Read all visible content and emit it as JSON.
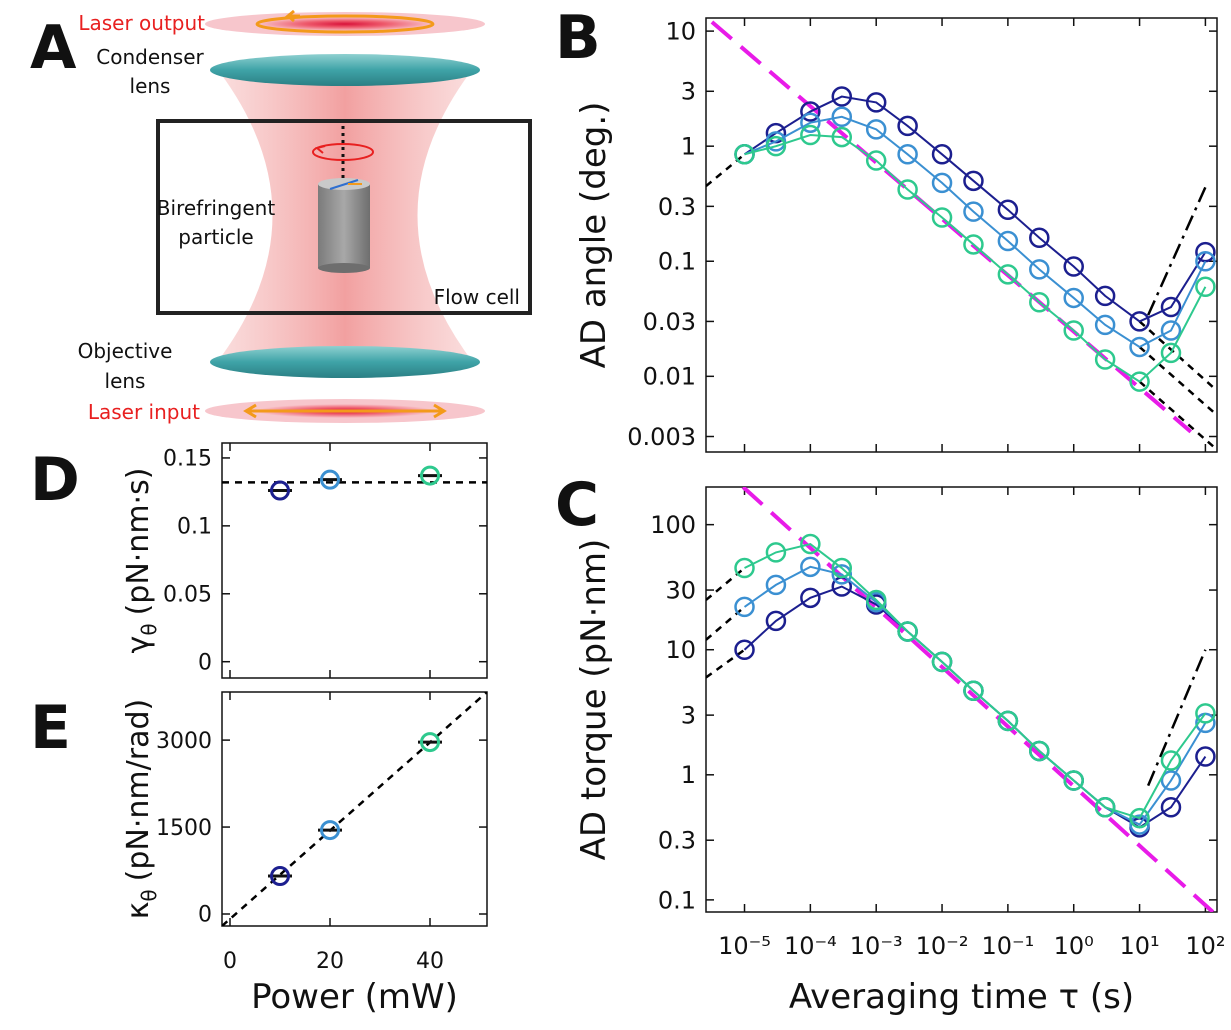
{
  "diagram": {
    "panel_label": "A",
    "laser_output": "Laser output",
    "condenser": [
      "Condenser",
      "lens"
    ],
    "particle": [
      "Birefringent",
      "particle"
    ],
    "flow_cell": "Flow cell",
    "objective": [
      "Objective",
      "lens"
    ],
    "laser_input": "Laser input"
  },
  "chart_data": [
    {
      "type": "line",
      "panel_label": "B",
      "ylabel": "AD angle (deg.)",
      "xscale": "log",
      "yscale": "log",
      "xlim": [
        2.6e-06,
        150
      ],
      "ylim": [
        0.0022,
        13
      ],
      "xticks": [
        {
          "value": 1e-05,
          "label": "10⁻⁵"
        },
        {
          "value": 0.0001,
          "label": "10⁻⁴"
        },
        {
          "value": 0.001,
          "label": "10⁻³"
        },
        {
          "value": 0.01,
          "label": "10⁻²"
        },
        {
          "value": 0.1,
          "label": "10⁻¹"
        },
        {
          "value": 1,
          "label": "10⁰"
        },
        {
          "value": 10,
          "label": "10¹"
        },
        {
          "value": 100,
          "label": "10²"
        }
      ],
      "xticklabels": false,
      "yticks": [
        0.003,
        0.01,
        0.03,
        0.1,
        0.3,
        1,
        3,
        10
      ],
      "x": [
        1e-05,
        3e-05,
        0.0001,
        0.0003,
        0.001,
        0.003,
        0.01,
        0.03,
        0.1,
        0.3,
        1,
        3,
        10,
        30,
        100
      ],
      "series": [
        {
          "color": "#1c1f8f",
          "values": [
            0.85,
            1.3,
            2.0,
            2.7,
            2.4,
            1.5,
            0.85,
            0.5,
            0.28,
            0.16,
            0.09,
            0.05,
            0.03,
            0.04,
            0.12
          ]
        },
        {
          "color": "#3b90d2",
          "values": [
            0.85,
            1.1,
            1.6,
            1.8,
            1.4,
            0.85,
            0.48,
            0.27,
            0.15,
            0.085,
            0.048,
            0.028,
            0.018,
            0.025,
            0.1
          ]
        },
        {
          "color": "#2ec98e",
          "values": [
            0.85,
            1.0,
            1.25,
            1.2,
            0.75,
            0.42,
            0.24,
            0.14,
            0.077,
            0.044,
            0.025,
            0.014,
            0.009,
            0.016,
            0.06
          ]
        }
      ],
      "lines": [
        {
          "color": "#000000",
          "dash": "dashed",
          "x": [
            2.6e-06,
            1e-05
          ],
          "values": [
            0.45,
            0.85
          ]
        },
        {
          "color": "#000000",
          "dash": "dashed",
          "x": [
            10,
            150
          ],
          "values": [
            0.03,
            0.0075
          ]
        },
        {
          "color": "#000000",
          "dash": "dashed",
          "x": [
            10,
            150
          ],
          "values": [
            0.018,
            0.0046
          ]
        },
        {
          "color": "#000000",
          "dash": "dashed",
          "x": [
            10,
            150
          ],
          "values": [
            0.009,
            0.0023
          ]
        },
        {
          "color": "#e81be8",
          "dash": "long",
          "x": [
            3.2e-06,
            60
          ],
          "values": [
            12,
            0.0033
          ]
        },
        {
          "color": "#000000",
          "dash": "dashdot",
          "x": [
            13.5,
            100
          ],
          "values": [
            0.034,
            0.44
          ]
        }
      ]
    },
    {
      "type": "line",
      "panel_label": "C",
      "ylabel": "AD torque (pN·nm)",
      "xlabel": "Averaging time τ (s)",
      "xscale": "log",
      "yscale": "log",
      "xlim": [
        2.6e-06,
        150
      ],
      "ylim": [
        0.08,
        200
      ],
      "xticks": [
        {
          "value": 1e-05,
          "label": "10⁻⁵"
        },
        {
          "value": 0.0001,
          "label": "10⁻⁴"
        },
        {
          "value": 0.001,
          "label": "10⁻³"
        },
        {
          "value": 0.01,
          "label": "10⁻²"
        },
        {
          "value": 0.1,
          "label": "10⁻¹"
        },
        {
          "value": 1,
          "label": "10⁰"
        },
        {
          "value": 10,
          "label": "10¹"
        },
        {
          "value": 100,
          "label": "10²"
        }
      ],
      "xticklabels": true,
      "yticks": [
        0.1,
        0.3,
        1,
        3,
        10,
        30,
        100
      ],
      "x": [
        1e-05,
        3e-05,
        0.0001,
        0.0003,
        0.001,
        0.003,
        0.01,
        0.03,
        0.1,
        0.3,
        1,
        3,
        10,
        30,
        100
      ],
      "series": [
        {
          "color": "#1c1f8f",
          "values": [
            10,
            17,
            26,
            32,
            23,
            14,
            8,
            4.7,
            2.7,
            1.55,
            0.9,
            0.55,
            0.38,
            0.55,
            1.4
          ]
        },
        {
          "color": "#3b90d2",
          "values": [
            22,
            33,
            46,
            40,
            24,
            14,
            8,
            4.7,
            2.7,
            1.55,
            0.9,
            0.55,
            0.4,
            0.9,
            2.6
          ]
        },
        {
          "color": "#2ec98e",
          "values": [
            45,
            60,
            70,
            45,
            25,
            14,
            8,
            4.7,
            2.7,
            1.55,
            0.9,
            0.55,
            0.45,
            1.3,
            3.1
          ]
        }
      ],
      "lines": [
        {
          "color": "#000000",
          "dash": "dashed",
          "x": [
            2.6e-06,
            1e-05
          ],
          "values": [
            6,
            10
          ]
        },
        {
          "color": "#000000",
          "dash": "dashed",
          "x": [
            2.6e-06,
            1e-05
          ],
          "values": [
            12,
            22
          ]
        },
        {
          "color": "#000000",
          "dash": "dashed",
          "x": [
            2.6e-06,
            1e-05
          ],
          "values": [
            25,
            45
          ]
        },
        {
          "color": "#e81be8",
          "dash": "long",
          "x": [
            9.5e-06,
            130
          ],
          "values": [
            200,
            0.08
          ]
        },
        {
          "color": "#000000",
          "dash": "dashdot",
          "x": [
            13.5,
            100
          ],
          "values": [
            0.82,
            10
          ]
        }
      ]
    },
    {
      "type": "scatter",
      "panel_label": "D",
      "ylabel": {
        "symbol": "γ",
        "subscript": "θ",
        "unit": "(pN·nm·s)"
      },
      "xlim": [
        -1.6,
        51.4
      ],
      "ylim": [
        -0.012,
        0.161
      ],
      "xticks": [
        0,
        20,
        40
      ],
      "xticklabels": false,
      "yticks": [
        0,
        0.05,
        0.1,
        0.15
      ],
      "x": [
        10,
        20,
        40
      ],
      "values": [
        0.126,
        0.134,
        0.137
      ],
      "colors": [
        "#1c1f8f",
        "#3b90d2",
        "#2ec98e"
      ],
      "lines": [
        {
          "color": "#000000",
          "dash": "dashed",
          "x": [
            -1.6,
            51.4
          ],
          "values": [
            0.132,
            0.132
          ]
        }
      ]
    },
    {
      "type": "scatter",
      "panel_label": "E",
      "ylabel": {
        "symbol": "κ",
        "subscript": "θ",
        "unit": "(pN·nm/rad)"
      },
      "xlabel": "Power (mW)",
      "xlim": [
        -1.6,
        51.4
      ],
      "ylim": [
        -207,
        3830
      ],
      "xticks": [
        0,
        20,
        40
      ],
      "xticklabels": true,
      "yticks": [
        0,
        1500,
        3000
      ],
      "x": [
        10,
        20,
        40
      ],
      "values": [
        655,
        1448,
        2966
      ],
      "colors": [
        "#1c1f8f",
        "#3b90d2",
        "#2ec98e"
      ],
      "lines": [
        {
          "color": "#000000",
          "dash": "dashed",
          "x": [
            -1.6,
            51.4
          ],
          "values": [
            -207,
            3830
          ]
        }
      ]
    }
  ]
}
